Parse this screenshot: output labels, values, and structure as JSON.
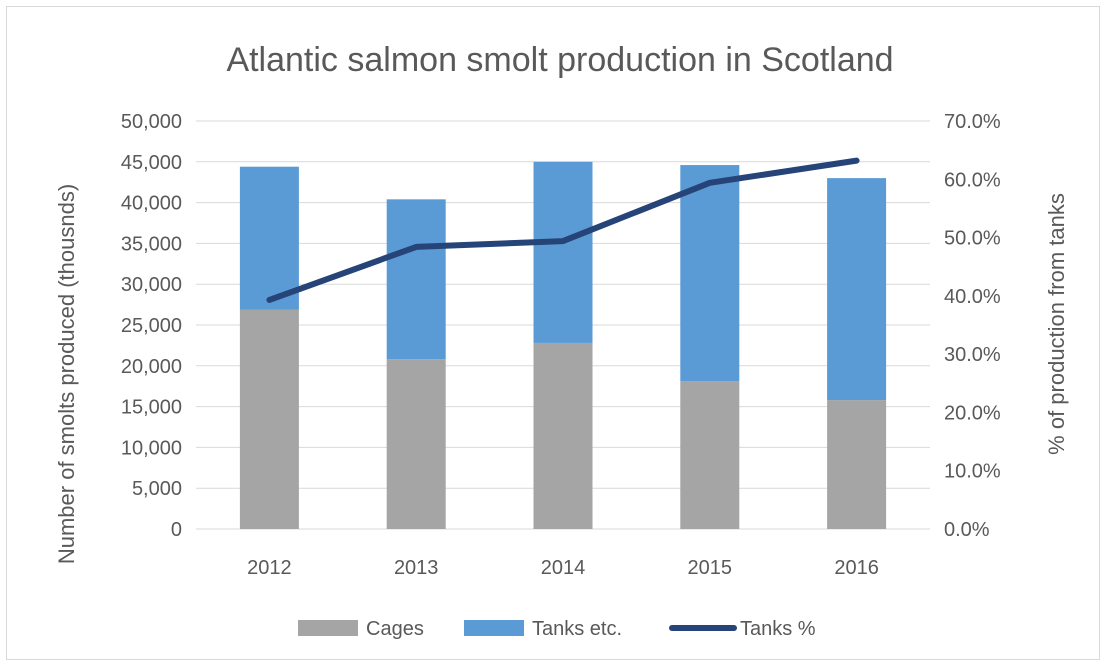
{
  "chart_data": {
    "type": "bar",
    "stacked": true,
    "title": "Atlantic salmon smolt production in Scotland",
    "xlabel": "",
    "ylabel": "Number of smolts produced (thousnds)",
    "y2label": "% of production from tanks",
    "categories": [
      "2012",
      "2013",
      "2014",
      "2015",
      "2016"
    ],
    "ylim": [
      0,
      50000
    ],
    "y2lim": [
      0,
      0.7
    ],
    "yticks": [
      "0",
      "5,000",
      "10,000",
      "15,000",
      "20,000",
      "25,000",
      "30,000",
      "35,000",
      "40,000",
      "45,000",
      "50,000"
    ],
    "y2ticks": [
      "0.0%",
      "10.0%",
      "20.0%",
      "30.0%",
      "40.0%",
      "50.0%",
      "60.0%",
      "70.0%"
    ],
    "grid": true,
    "legend_position": "bottom",
    "series": [
      {
        "name": "Cages",
        "type": "bar",
        "axis": "left",
        "color": "#a5a5a5",
        "values": [
          26900,
          20800,
          22800,
          18100,
          15800
        ]
      },
      {
        "name": "Tanks etc.",
        "type": "bar",
        "axis": "left",
        "color": "#5b9bd5",
        "values": [
          17500,
          19600,
          22200,
          26500,
          27200
        ]
      },
      {
        "name": "Tanks %",
        "type": "line",
        "axis": "right",
        "color": "#264478",
        "values": [
          0.393,
          0.484,
          0.494,
          0.594,
          0.632
        ]
      }
    ]
  }
}
